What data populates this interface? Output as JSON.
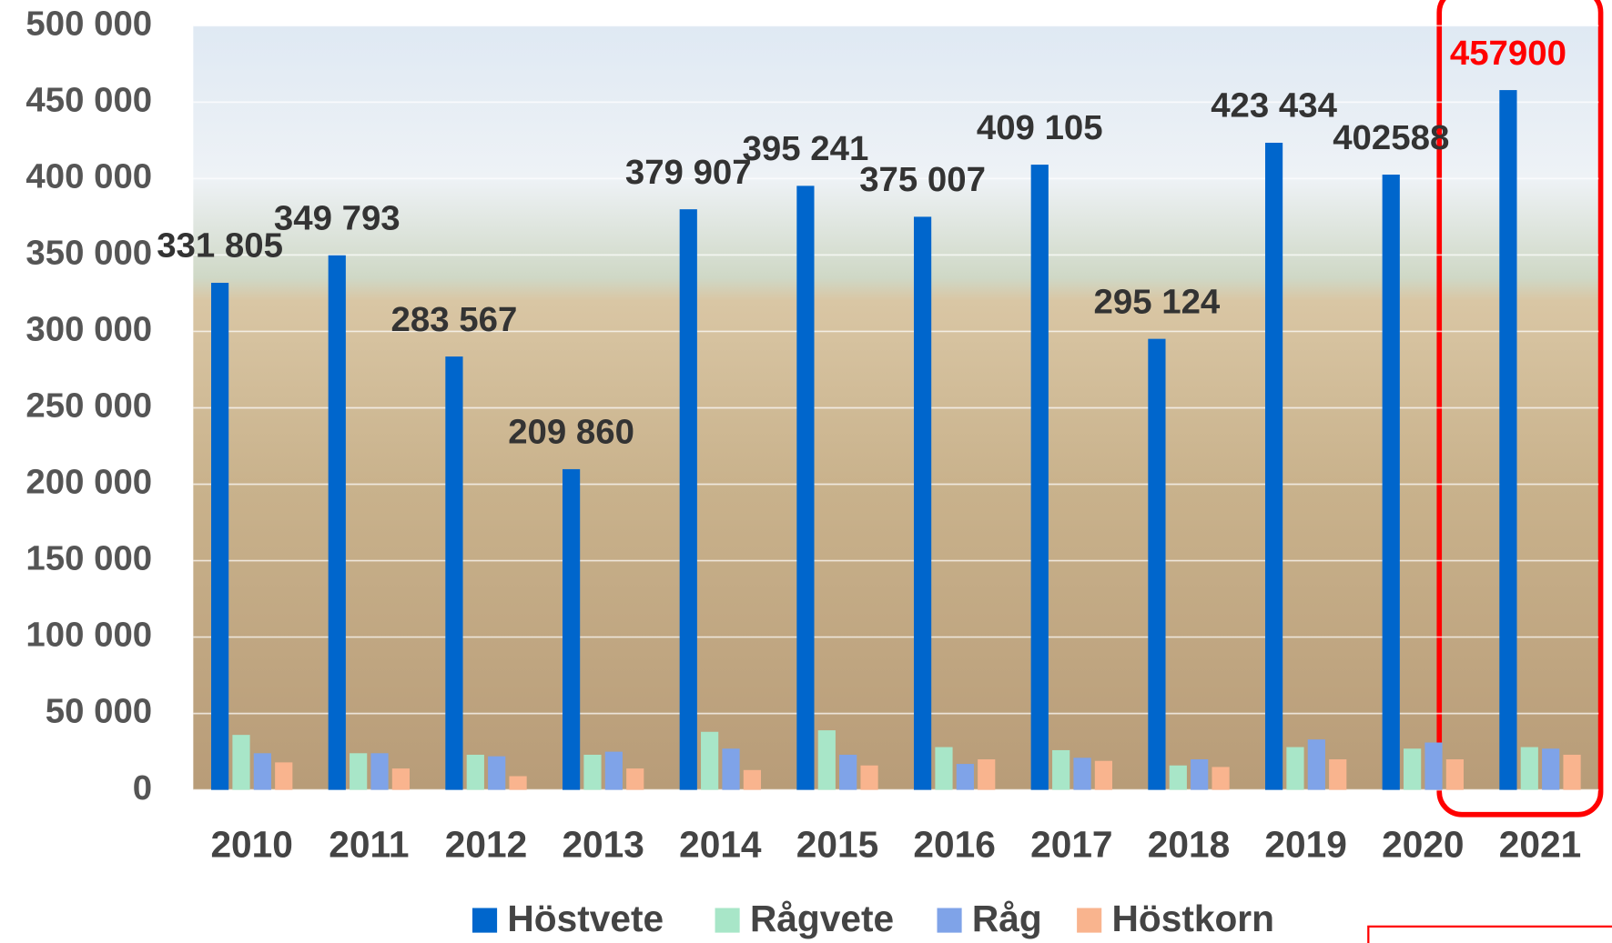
{
  "chart_data": {
    "type": "bar",
    "categories": [
      "2010",
      "2011",
      "2012",
      "2013",
      "2014",
      "2015",
      "2016",
      "2017",
      "2018",
      "2019",
      "2020",
      "2021"
    ],
    "series": [
      {
        "name": "Höstvete",
        "color": "#0066cc",
        "values": [
          331805,
          349793,
          283567,
          209860,
          379907,
          395241,
          375007,
          409105,
          295124,
          423434,
          402588,
          457900
        ],
        "value_labels": [
          "331 805",
          "349 793",
          "283 567",
          "209 860",
          "379 907",
          "395 241",
          "375 007",
          "409 105",
          "295 124",
          "423 434",
          "402588",
          "457900"
        ],
        "value_label_colors": [
          "#333333",
          "#333333",
          "#333333",
          "#333333",
          "#333333",
          "#333333",
          "#333333",
          "#333333",
          "#333333",
          "#333333",
          "#333333",
          "#ff0000"
        ]
      },
      {
        "name": "Rågvete",
        "color": "#a8e6c8",
        "values": [
          36000,
          24000,
          23000,
          23000,
          38000,
          39000,
          28000,
          26000,
          16000,
          28000,
          27000,
          28000
        ]
      },
      {
        "name": "Råg",
        "color": "#7fa3e8",
        "values": [
          24000,
          24000,
          22000,
          25000,
          27000,
          23000,
          17000,
          21000,
          20000,
          33000,
          31000,
          27000
        ]
      },
      {
        "name": "Höstkorn",
        "color": "#f9b48e",
        "values": [
          18000,
          14000,
          9000,
          14000,
          13000,
          16000,
          20000,
          19000,
          15000,
          20000,
          20000,
          23000
        ]
      }
    ],
    "ylim": [
      0,
      500000
    ],
    "yticks": [
      0,
      {
        "value": 50000,
        "label": "50 000"
      },
      {
        "value": 100000,
        "label": "100 000"
      },
      {
        "value": 150000,
        "label": "150 000"
      },
      {
        "value": 200000,
        "label": "200 000"
      },
      {
        "value": 250000,
        "label": "250 000"
      },
      {
        "value": 300000,
        "label": "300 000"
      },
      {
        "value": 350000,
        "label": "350 000"
      },
      {
        "value": 400000,
        "label": "400 000"
      },
      {
        "value": 450000,
        "label": "450 000"
      },
      {
        "value": 500000,
        "label": "500 000"
      }
    ],
    "grid": true,
    "legend": "bottom"
  }
}
